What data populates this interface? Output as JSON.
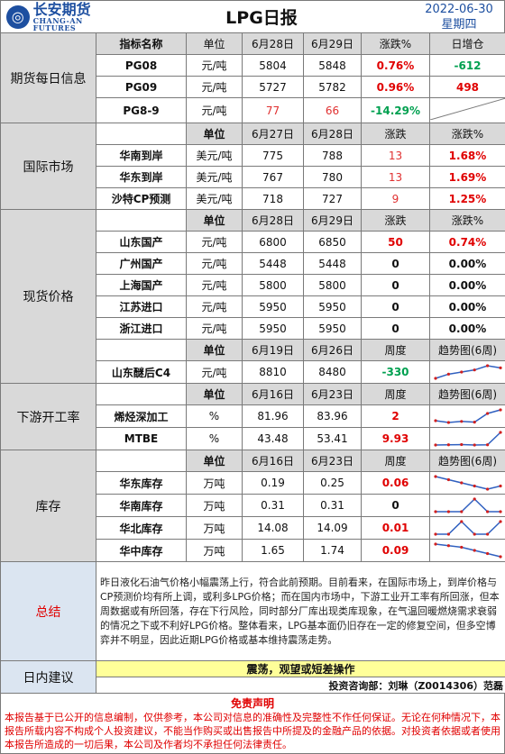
{
  "header": {
    "logo_cn": "长安期货",
    "logo_en": "CHANG-AN FUTURES",
    "title": "LPG日报",
    "date": "2022-06-30",
    "weekday": "星期四"
  },
  "futures": {
    "section": "期货每日信息",
    "headers": [
      "指标名称",
      "单位",
      "6月28日",
      "6月29日",
      "涨跌%",
      "日增仓"
    ],
    "rows": [
      {
        "name": "PG08",
        "unit": "元/吨",
        "v1": "5804",
        "v2": "5848",
        "chg": "0.76%",
        "oi": "-612"
      },
      {
        "name": "PG09",
        "unit": "元/吨",
        "v1": "5727",
        "v2": "5782",
        "chg": "0.96%",
        "oi": "498"
      },
      {
        "name": "PG8-9",
        "unit": "元/吨",
        "v1": "77",
        "v2": "66",
        "chg": "-14.29%",
        "oi": ""
      }
    ]
  },
  "intl": {
    "section": "国际市场",
    "headers": [
      "单位",
      "6月27日",
      "6月28日",
      "涨跌",
      "涨跌%"
    ],
    "rows": [
      {
        "name": "华南到岸",
        "unit": "美元/吨",
        "v1": "775",
        "v2": "788",
        "chg": "13",
        "pct": "1.68%"
      },
      {
        "name": "华东到岸",
        "unit": "美元/吨",
        "v1": "767",
        "v2": "780",
        "chg": "13",
        "pct": "1.69%"
      },
      {
        "name": "沙特CP预测",
        "unit": "美元/吨",
        "v1": "718",
        "v2": "727",
        "chg": "9",
        "pct": "1.25%"
      }
    ]
  },
  "spot": {
    "section": "现货价格",
    "headers": [
      "单位",
      "6月28日",
      "6月29日",
      "涨跌",
      "涨跌%"
    ],
    "rows": [
      {
        "name": "山东国产",
        "unit": "元/吨",
        "v1": "6800",
        "v2": "6850",
        "chg": "50",
        "pct": "0.74%"
      },
      {
        "name": "广州国产",
        "unit": "元/吨",
        "v1": "5448",
        "v2": "5448",
        "chg": "0",
        "pct": "0.00%"
      },
      {
        "name": "上海国产",
        "unit": "元/吨",
        "v1": "5800",
        "v2": "5800",
        "chg": "0",
        "pct": "0.00%"
      },
      {
        "name": "江苏进口",
        "unit": "元/吨",
        "v1": "5950",
        "v2": "5950",
        "chg": "0",
        "pct": "0.00%"
      },
      {
        "name": "浙江进口",
        "unit": "元/吨",
        "v1": "5950",
        "v2": "5950",
        "chg": "0",
        "pct": "0.00%"
      }
    ],
    "sub_headers": [
      "单位",
      "6月19日",
      "6月26日",
      "周度",
      "趋势图(6周)"
    ],
    "sub_row": {
      "name": "山东醚后C4",
      "unit": "元/吨",
      "v1": "8810",
      "v2": "8480",
      "chg": "-330",
      "trend": [
        6,
        7,
        7.5,
        8,
        9,
        8.5
      ]
    }
  },
  "downstream": {
    "section": "下游开工率",
    "headers": [
      "单位",
      "6月16日",
      "6月23日",
      "周度",
      "趋势图(6周)"
    ],
    "rows": [
      {
        "name": "烯烃深加工",
        "unit": "%",
        "v1": "81.96",
        "v2": "83.96",
        "chg": "2",
        "trend": [
          5,
          4.5,
          4.8,
          4.6,
          7,
          8
        ]
      },
      {
        "name": "MTBE",
        "unit": "%",
        "v1": "43.48",
        "v2": "53.41",
        "chg": "9.93",
        "trend": [
          3,
          3.1,
          3.2,
          3,
          3.1,
          9
        ]
      }
    ]
  },
  "inventory": {
    "section": "库存",
    "headers": [
      "单位",
      "6月16日",
      "6月23日",
      "周度",
      "趋势图(6周)"
    ],
    "rows": [
      {
        "name": "华东库存",
        "unit": "万吨",
        "v1": "0.19",
        "v2": "0.25",
        "chg": "0.06",
        "trend": [
          9,
          8,
          7,
          6,
          5,
          6
        ]
      },
      {
        "name": "华南库存",
        "unit": "万吨",
        "v1": "0.31",
        "v2": "0.31",
        "chg": "0",
        "trend": [
          3,
          3,
          3,
          8,
          3,
          3
        ]
      },
      {
        "name": "华北库存",
        "unit": "万吨",
        "v1": "14.08",
        "v2": "14.09",
        "chg": "0.01",
        "trend": [
          5,
          5,
          5.1,
          5,
          5,
          5.1
        ]
      },
      {
        "name": "华中库存",
        "unit": "万吨",
        "v1": "1.65",
        "v2": "1.74",
        "chg": "0.09",
        "trend": [
          8,
          7.5,
          7,
          6,
          5,
          4
        ]
      }
    ]
  },
  "summary": {
    "section": "总结",
    "text": "昨日液化石油气价格小幅震荡上行，符合此前预期。目前看来，在国际市场上，到岸价格与CP预测价均有所上调，或利多LPG价格；而在国内市场中，下游工业开工率有所回涨，但本周数据或有所回落，存在下行风险，同时部分厂库出现类库现象，在气温回暖燃烧需求衰弱的情况之下或不利好LPG价格。整体看来，LPG基本面仍旧存在一定的修复空间，但多空博弈并不明显，因此近期LPG价格或基本维持震荡走势。"
  },
  "advice": {
    "section": "日内建议",
    "text": "震荡，观望或短差操作",
    "analyst": "投资咨询部：刘琳（Z0014306）范磊"
  },
  "disclaimer": {
    "title": "免责声明",
    "text": "本报告基于已公开的信息编制，仅供参考，本公司对信息的准确性及完整性不作任何保证。无论在何种情况下，本报告所载内容不构成个人投资建议，不能当作购买或出售报告中所提及的金融产品的依据。对投资者依据或者使用本报告所造成的一切后果，本公司及作者均不承担任何法律责任。"
  },
  "colors": {
    "accent": "#1d4fa0",
    "up": "#e00000",
    "down": "#00a050",
    "section_bg": "#dbe5f1",
    "advice_bg": "#ffff99"
  }
}
